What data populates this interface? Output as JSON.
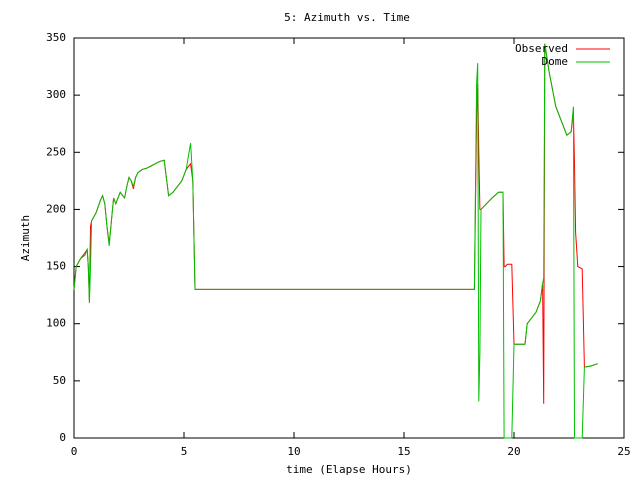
{
  "chart_data": {
    "type": "line",
    "title": "5: Azimuth vs. Time",
    "xlabel": "time (Elapse Hours)",
    "ylabel": "Azimuth",
    "x": [
      0,
      0.1,
      0.3,
      0.5,
      0.6,
      0.65,
      0.7,
      0.75,
      0.8,
      1.0,
      1.2,
      1.3,
      1.4,
      1.5,
      1.6,
      1.7,
      1.8,
      1.9,
      2.1,
      2.3,
      2.4,
      2.5,
      2.6,
      2.7,
      2.8,
      2.9,
      3.1,
      3.3,
      3.5,
      3.7,
      3.9,
      4.1,
      4.3,
      4.5,
      4.7,
      4.9,
      5.0,
      5.1,
      5.3,
      5.4,
      5.5,
      10,
      18.2,
      18.3,
      18.35,
      18.4,
      18.45,
      18.5,
      19.0,
      19.3,
      19.5,
      19.55,
      19.6,
      19.7,
      19.9,
      20.0,
      20.5,
      20.6,
      21.0,
      21.2,
      21.3,
      21.35,
      21.4,
      21.6,
      21.9,
      22.2,
      22.4,
      22.6,
      22.7,
      22.75,
      22.8,
      22.9,
      23.1,
      23.2,
      23.5,
      23.8
    ],
    "series": [
      {
        "name": "Observed",
        "color": "#ff0000",
        "values": [
          130,
          150,
          157,
          162,
          165,
          150,
          120,
          185,
          190,
          197,
          208,
          212,
          205,
          185,
          170,
          190,
          210,
          205,
          215,
          210,
          220,
          228,
          225,
          218,
          228,
          232,
          235,
          236,
          238,
          240,
          242,
          243,
          212,
          215,
          220,
          225,
          230,
          235,
          240,
          225,
          130,
          130,
          130,
          280,
          310,
          250,
          200,
          200,
          210,
          215,
          215,
          150,
          150,
          152,
          152,
          82,
          82,
          100,
          110,
          120,
          135,
          30,
          345,
          320,
          290,
          275,
          265,
          268,
          285,
          240,
          180,
          150,
          148,
          62,
          63,
          65
        ]
      },
      {
        "name": "Dome",
        "color": "#00c000",
        "values": [
          130,
          150,
          157,
          160,
          165,
          150,
          118,
          150,
          190,
          197,
          208,
          212,
          205,
          185,
          168,
          190,
          210,
          205,
          215,
          210,
          220,
          228,
          225,
          220,
          228,
          232,
          235,
          236,
          238,
          240,
          242,
          243,
          212,
          215,
          220,
          225,
          230,
          235,
          258,
          225,
          130,
          130,
          130,
          310,
          328,
          32,
          75,
          200,
          210,
          215,
          215,
          0,
          0,
          0,
          0,
          82,
          82,
          100,
          110,
          120,
          135,
          140,
          345,
          320,
          290,
          275,
          265,
          268,
          290,
          0,
          0,
          0,
          0,
          62,
          63,
          65
        ]
      }
    ],
    "xlim": [
      0,
      25
    ],
    "xticks": [
      0,
      5,
      10,
      15,
      20,
      25
    ],
    "ylim": [
      0,
      350
    ],
    "yticks": [
      0,
      50,
      100,
      150,
      200,
      250,
      300,
      350
    ],
    "legend": "upper right"
  }
}
